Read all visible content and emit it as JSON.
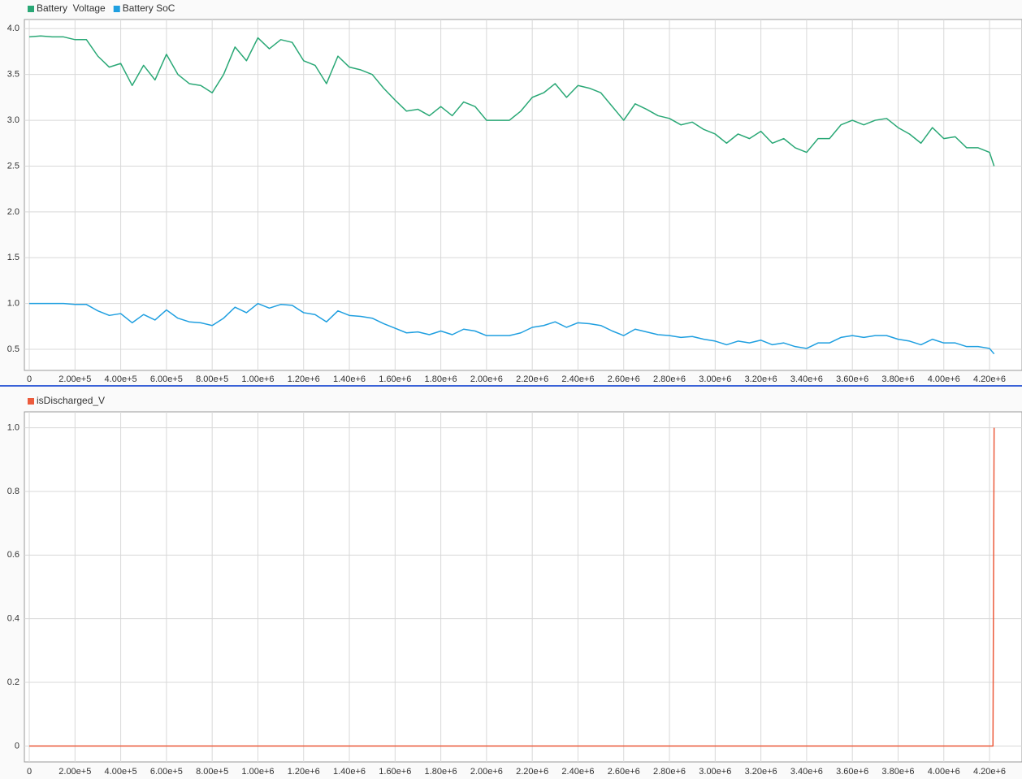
{
  "chart_data": [
    {
      "type": "line",
      "x": [
        0,
        50000,
        100000,
        150000,
        200000,
        250000,
        300000,
        350000,
        400000,
        450000,
        500000,
        550000,
        600000,
        650000,
        700000,
        750000,
        800000,
        850000,
        900000,
        950000,
        1000000,
        1050000,
        1100000,
        1150000,
        1200000,
        1250000,
        1300000,
        1350000,
        1400000,
        1450000,
        1500000,
        1550000,
        1600000,
        1650000,
        1700000,
        1750000,
        1800000,
        1850000,
        1900000,
        1950000,
        2000000,
        2050000,
        2100000,
        2150000,
        2200000,
        2250000,
        2300000,
        2350000,
        2400000,
        2450000,
        2500000,
        2550000,
        2600000,
        2650000,
        2700000,
        2750000,
        2800000,
        2850000,
        2900000,
        2950000,
        3000000,
        3050000,
        3100000,
        3150000,
        3200000,
        3250000,
        3300000,
        3350000,
        3400000,
        3450000,
        3500000,
        3550000,
        3600000,
        3650000,
        3700000,
        3750000,
        3800000,
        3850000,
        3900000,
        3950000,
        4000000,
        4050000,
        4100000,
        4150000,
        4200000,
        4220000
      ],
      "series": [
        {
          "name": "Battery  Voltage",
          "color": "#2aa876",
          "values": [
            3.91,
            3.92,
            3.91,
            3.91,
            3.88,
            3.88,
            3.7,
            3.58,
            3.62,
            3.38,
            3.6,
            3.44,
            3.72,
            3.5,
            3.4,
            3.38,
            3.3,
            3.5,
            3.8,
            3.65,
            3.9,
            3.78,
            3.88,
            3.85,
            3.65,
            3.6,
            3.4,
            3.7,
            3.58,
            3.55,
            3.5,
            3.35,
            3.22,
            3.1,
            3.12,
            3.05,
            3.15,
            3.05,
            3.2,
            3.15,
            3.0,
            3.0,
            3.0,
            3.1,
            3.25,
            3.3,
            3.4,
            3.25,
            3.38,
            3.35,
            3.3,
            3.15,
            3.0,
            3.18,
            3.12,
            3.05,
            3.02,
            2.95,
            2.98,
            2.9,
            2.85,
            2.75,
            2.85,
            2.8,
            2.88,
            2.75,
            2.8,
            2.7,
            2.65,
            2.8,
            2.8,
            2.95,
            3.0,
            2.95,
            3.0,
            3.02,
            2.92,
            2.85,
            2.75,
            2.92,
            2.8,
            2.82,
            2.7,
            2.7,
            2.65,
            2.5
          ]
        },
        {
          "name": "Battery SoC",
          "color": "#1f9fe0",
          "values": [
            1.0,
            1.0,
            1.0,
            1.0,
            0.99,
            0.99,
            0.92,
            0.87,
            0.89,
            0.79,
            0.88,
            0.82,
            0.93,
            0.84,
            0.8,
            0.79,
            0.76,
            0.84,
            0.96,
            0.9,
            1.0,
            0.95,
            0.99,
            0.98,
            0.9,
            0.88,
            0.8,
            0.92,
            0.87,
            0.86,
            0.84,
            0.78,
            0.73,
            0.68,
            0.69,
            0.66,
            0.7,
            0.66,
            0.72,
            0.7,
            0.65,
            0.65,
            0.65,
            0.68,
            0.74,
            0.76,
            0.8,
            0.74,
            0.79,
            0.78,
            0.76,
            0.7,
            0.65,
            0.72,
            0.69,
            0.66,
            0.65,
            0.63,
            0.64,
            0.61,
            0.59,
            0.55,
            0.59,
            0.57,
            0.6,
            0.55,
            0.57,
            0.53,
            0.51,
            0.57,
            0.57,
            0.63,
            0.65,
            0.63,
            0.65,
            0.65,
            0.61,
            0.59,
            0.55,
            0.61,
            0.57,
            0.57,
            0.53,
            0.53,
            0.51,
            0.45
          ]
        }
      ],
      "xlim": [
        -21400,
        4342000
      ],
      "xticks": [
        0,
        {
          "value": 200000,
          "label": "2.00e+5"
        },
        {
          "value": 400000,
          "label": "4.00e+5"
        },
        {
          "value": 600000,
          "label": "6.00e+5"
        },
        {
          "value": 800000,
          "label": "8.00e+5"
        },
        {
          "value": 1000000,
          "label": "1.00e+6"
        },
        {
          "value": 1200000,
          "label": "1.20e+6"
        },
        {
          "value": 1400000,
          "label": "1.40e+6"
        },
        {
          "value": 1600000,
          "label": "1.60e+6"
        },
        {
          "value": 1800000,
          "label": "1.80e+6"
        },
        {
          "value": 2000000,
          "label": "2.00e+6"
        },
        {
          "value": 2200000,
          "label": "2.20e+6"
        },
        {
          "value": 2400000,
          "label": "2.40e+6"
        },
        {
          "value": 2600000,
          "label": "2.60e+6"
        },
        {
          "value": 2800000,
          "label": "2.80e+6"
        },
        {
          "value": 3000000,
          "label": "3.00e+6"
        },
        {
          "value": 3200000,
          "label": "3.20e+6"
        },
        {
          "value": 3400000,
          "label": "3.40e+6"
        },
        {
          "value": 3600000,
          "label": "3.60e+6"
        },
        {
          "value": 3800000,
          "label": "3.80e+6"
        },
        {
          "value": 4000000,
          "label": "4.00e+6"
        },
        {
          "value": 4200000,
          "label": "4.20e+6"
        }
      ],
      "ylim": [
        0.27,
        4.1
      ],
      "yticks": [
        0.5,
        {
          "value": 1,
          "label": "1.0"
        },
        1.5,
        {
          "value": 2,
          "label": "2.0"
        },
        2.5,
        {
          "value": 3,
          "label": "3.0"
        },
        3.5,
        {
          "value": 4,
          "label": "4.0"
        }
      ],
      "grid": true
    },
    {
      "type": "line",
      "x": [
        0,
        4215000,
        4220000
      ],
      "series": [
        {
          "name": "isDischarged_V",
          "color": "#ec5b3c",
          "values": [
            0,
            0,
            1
          ]
        }
      ],
      "xlim": [
        -21400,
        4342000
      ],
      "xticks": [
        0,
        {
          "value": 200000,
          "label": "2.00e+5"
        },
        {
          "value": 400000,
          "label": "4.00e+5"
        },
        {
          "value": 600000,
          "label": "6.00e+5"
        },
        {
          "value": 800000,
          "label": "8.00e+5"
        },
        {
          "value": 1000000,
          "label": "1.00e+6"
        },
        {
          "value": 1200000,
          "label": "1.20e+6"
        },
        {
          "value": 1400000,
          "label": "1.40e+6"
        },
        {
          "value": 1600000,
          "label": "1.60e+6"
        },
        {
          "value": 1800000,
          "label": "1.80e+6"
        },
        {
          "value": 2000000,
          "label": "2.00e+6"
        },
        {
          "value": 2200000,
          "label": "2.20e+6"
        },
        {
          "value": 2400000,
          "label": "2.40e+6"
        },
        {
          "value": 2600000,
          "label": "2.60e+6"
        },
        {
          "value": 2800000,
          "label": "2.80e+6"
        },
        {
          "value": 3000000,
          "label": "3.00e+6"
        },
        {
          "value": 3200000,
          "label": "3.20e+6"
        },
        {
          "value": 3400000,
          "label": "3.40e+6"
        },
        {
          "value": 3600000,
          "label": "3.60e+6"
        },
        {
          "value": 3800000,
          "label": "3.80e+6"
        },
        {
          "value": 4000000,
          "label": "4.00e+6"
        },
        {
          "value": 4200000,
          "label": "4.20e+6"
        }
      ],
      "ylim": [
        -0.05,
        1.05
      ],
      "yticks": [
        0,
        0.2,
        0.4,
        0.6,
        0.8,
        {
          "value": 1,
          "label": "1.0"
        }
      ],
      "grid": true
    }
  ]
}
